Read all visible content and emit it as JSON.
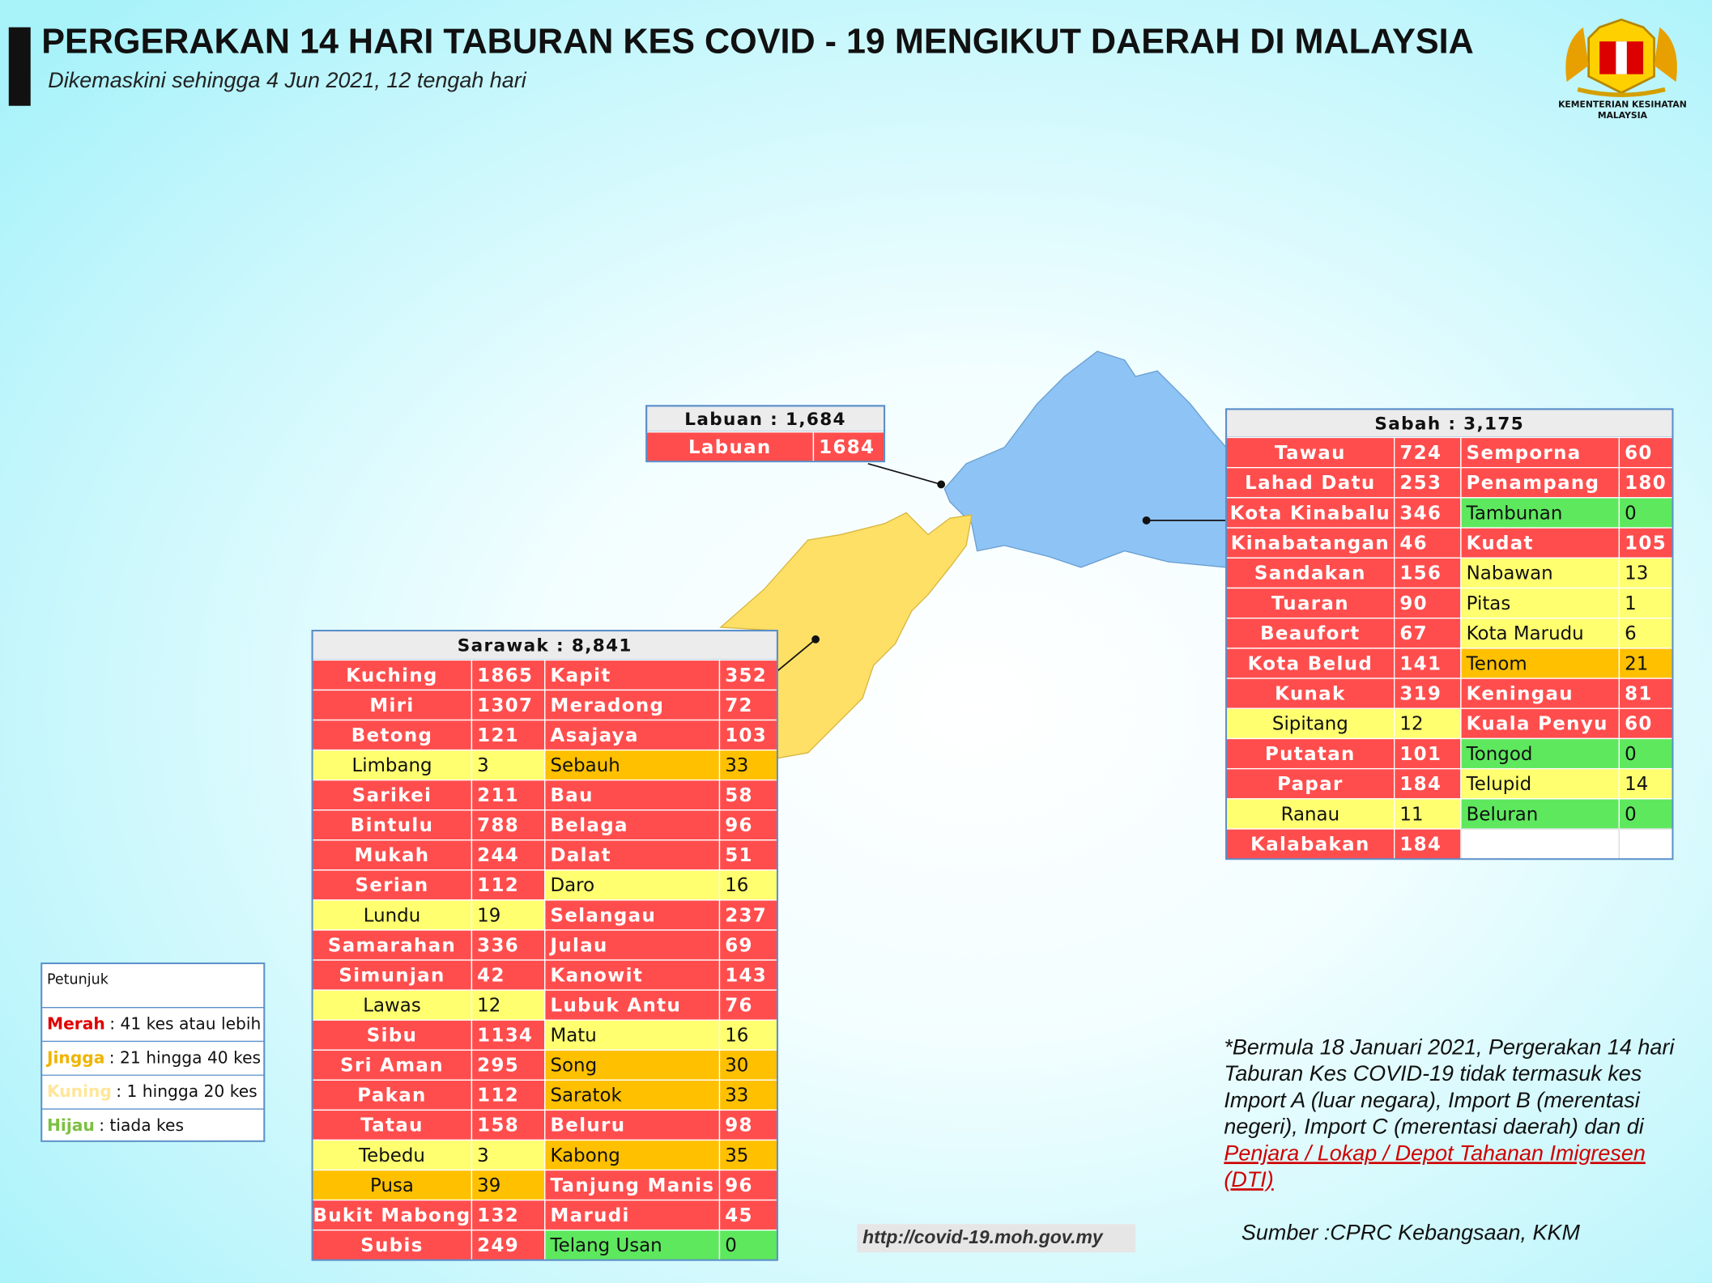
{
  "header": {
    "title": "PERGERAKAN 14 HARI TABURAN KES COVID - 19 MENGIKUT DAERAH DI MALAYSIA",
    "subtitle": "Dikemaskini sehingga 4 Jun 2021, 12 tengah hari"
  },
  "logo": {
    "line1": "KEMENTERIAN KESIHATAN",
    "line2": "MALAYSIA"
  },
  "labuan": {
    "title": "Labuan : 1,684",
    "rows": [
      {
        "left": {
          "name": "Labuan",
          "cases": 1684,
          "color": "#ff4d4d"
        }
      }
    ]
  },
  "sabah": {
    "title": "Sabah : 3,175",
    "rows": [
      {
        "left": {
          "name": "Tawau",
          "cases": 724,
          "color": "#ff4d4d"
        },
        "right": {
          "name": "Semporna",
          "cases": 60,
          "color": "#ff4d4d"
        }
      },
      {
        "left": {
          "name": "Lahad Datu",
          "cases": 253,
          "color": "#ff4d4d"
        },
        "right": {
          "name": "Penampang",
          "cases": 180,
          "color": "#ff4d4d"
        }
      },
      {
        "left": {
          "name": "Kota Kinabalu",
          "cases": 346,
          "color": "#ff4d4d"
        },
        "right": {
          "name": "Tambunan",
          "cases": 0,
          "color": "#5ee85e"
        }
      },
      {
        "left": {
          "name": "Kinabatangan",
          "cases": 46,
          "color": "#ff4d4d"
        },
        "right": {
          "name": "Kudat",
          "cases": 105,
          "color": "#ff4d4d"
        }
      },
      {
        "left": {
          "name": "Sandakan",
          "cases": 156,
          "color": "#ff4d4d"
        },
        "right": {
          "name": "Nabawan",
          "cases": 13,
          "color": "#ffff70"
        }
      },
      {
        "left": {
          "name": "Tuaran",
          "cases": 90,
          "color": "#ff4d4d"
        },
        "right": {
          "name": "Pitas",
          "cases": 1,
          "color": "#ffff70"
        }
      },
      {
        "left": {
          "name": "Beaufort",
          "cases": 67,
          "color": "#ff4d4d"
        },
        "right": {
          "name": "Kota Marudu",
          "cases": 6,
          "color": "#ffff70"
        }
      },
      {
        "left": {
          "name": "Kota Belud",
          "cases": 141,
          "color": "#ff4d4d"
        },
        "right": {
          "name": "Tenom",
          "cases": 21,
          "color": "#ffc000"
        }
      },
      {
        "left": {
          "name": "Kunak",
          "cases": 319,
          "color": "#ff4d4d"
        },
        "right": {
          "name": "Keningau",
          "cases": 81,
          "color": "#ff4d4d"
        }
      },
      {
        "left": {
          "name": "Sipitang",
          "cases": 12,
          "color": "#ffff70"
        },
        "right": {
          "name": "Kuala Penyu",
          "cases": 60,
          "color": "#ff4d4d"
        }
      },
      {
        "left": {
          "name": "Putatan",
          "cases": 101,
          "color": "#ff4d4d"
        },
        "right": {
          "name": "Tongod",
          "cases": 0,
          "color": "#5ee85e"
        }
      },
      {
        "left": {
          "name": "Papar",
          "cases": 184,
          "color": "#ff4d4d"
        },
        "right": {
          "name": "Telupid",
          "cases": 14,
          "color": "#ffff70"
        }
      },
      {
        "left": {
          "name": "Ranau",
          "cases": 11,
          "color": "#ffff70"
        },
        "right": {
          "name": "Beluran",
          "cases": 0,
          "color": "#5ee85e"
        }
      },
      {
        "left": {
          "name": "Kalabakan",
          "cases": 184,
          "color": "#ff4d4d"
        }
      }
    ]
  },
  "sarawak": {
    "title": "Sarawak : 8,841",
    "rows": [
      {
        "left": {
          "name": "Kuching",
          "cases": 1865,
          "color": "#ff4d4d"
        },
        "right": {
          "name": "Kapit",
          "cases": 352,
          "color": "#ff4d4d"
        }
      },
      {
        "left": {
          "name": "Miri",
          "cases": 1307,
          "color": "#ff4d4d"
        },
        "right": {
          "name": "Meradong",
          "cases": 72,
          "color": "#ff4d4d"
        }
      },
      {
        "left": {
          "name": "Betong",
          "cases": 121,
          "color": "#ff4d4d"
        },
        "right": {
          "name": "Asajaya",
          "cases": 103,
          "color": "#ff4d4d"
        }
      },
      {
        "left": {
          "name": "Limbang",
          "cases": 3,
          "color": "#ffff70"
        },
        "right": {
          "name": "Sebauh",
          "cases": 33,
          "color": "#ffc000"
        }
      },
      {
        "left": {
          "name": "Sarikei",
          "cases": 211,
          "color": "#ff4d4d"
        },
        "right": {
          "name": "Bau",
          "cases": 58,
          "color": "#ff4d4d"
        }
      },
      {
        "left": {
          "name": "Bintulu",
          "cases": 788,
          "color": "#ff4d4d"
        },
        "right": {
          "name": "Belaga",
          "cases": 96,
          "color": "#ff4d4d"
        }
      },
      {
        "left": {
          "name": "Mukah",
          "cases": 244,
          "color": "#ff4d4d"
        },
        "right": {
          "name": "Dalat",
          "cases": 51,
          "color": "#ff4d4d"
        }
      },
      {
        "left": {
          "name": "Serian",
          "cases": 112,
          "color": "#ff4d4d"
        },
        "right": {
          "name": "Daro",
          "cases": 16,
          "color": "#ffff70"
        }
      },
      {
        "left": {
          "name": "Lundu",
          "cases": 19,
          "color": "#ffff70"
        },
        "right": {
          "name": "Selangau",
          "cases": 237,
          "color": "#ff4d4d"
        }
      },
      {
        "left": {
          "name": "Samarahan",
          "cases": 336,
          "color": "#ff4d4d"
        },
        "right": {
          "name": "Julau",
          "cases": 69,
          "color": "#ff4d4d"
        }
      },
      {
        "left": {
          "name": "Simunjan",
          "cases": 42,
          "color": "#ff4d4d"
        },
        "right": {
          "name": "Kanowit",
          "cases": 143,
          "color": "#ff4d4d"
        }
      },
      {
        "left": {
          "name": "Lawas",
          "cases": 12,
          "color": "#ffff70"
        },
        "right": {
          "name": "Lubuk Antu",
          "cases": 76,
          "color": "#ff4d4d"
        }
      },
      {
        "left": {
          "name": "Sibu",
          "cases": 1134,
          "color": "#ff4d4d"
        },
        "right": {
          "name": "Matu",
          "cases": 16,
          "color": "#ffff70"
        }
      },
      {
        "left": {
          "name": "Sri Aman",
          "cases": 295,
          "color": "#ff4d4d"
        },
        "right": {
          "name": "Song",
          "cases": 30,
          "color": "#ffc000"
        }
      },
      {
        "left": {
          "name": "Pakan",
          "cases": 112,
          "color": "#ff4d4d"
        },
        "right": {
          "name": "Saratok",
          "cases": 33,
          "color": "#ffc000"
        }
      },
      {
        "left": {
          "name": "Tatau",
          "cases": 158,
          "color": "#ff4d4d"
        },
        "right": {
          "name": "Beluru",
          "cases": 98,
          "color": "#ff4d4d"
        }
      },
      {
        "left": {
          "name": "Tebedu",
          "cases": 3,
          "color": "#ffff70"
        },
        "right": {
          "name": "Kabong",
          "cases": 35,
          "color": "#ffc000"
        }
      },
      {
        "left": {
          "name": "Pusa",
          "cases": 39,
          "color": "#ffc000"
        },
        "right": {
          "name": "Tanjung Manis",
          "cases": 96,
          "color": "#ff4d4d"
        }
      },
      {
        "left": {
          "name": "Bukit Mabong",
          "cases": 132,
          "color": "#ff4d4d"
        },
        "right": {
          "name": "Marudi",
          "cases": 45,
          "color": "#ff4d4d"
        }
      },
      {
        "left": {
          "name": "Subis",
          "cases": 249,
          "color": "#ff4d4d"
        },
        "right": {
          "name": "Telang Usan",
          "cases": 0,
          "color": "#5ee85e"
        }
      }
    ]
  },
  "legend": {
    "title": "Petunjuk",
    "items": [
      {
        "label": "Merah",
        "text": ": 41 kes atau lebih",
        "color": "#ff4d4d",
        "label_color": "#e00000"
      },
      {
        "label": "Jingga",
        "text": ": 21 hingga 40 kes",
        "color": "#ffc000",
        "label_color": "#f0b400"
      },
      {
        "label": "Kuning",
        "text": ": 1 hingga 20 kes",
        "color": "#ffff70",
        "label_color": "#ffe699"
      },
      {
        "label": "Hijau",
        "text": ": tiada kes",
        "color": "#5ee85e",
        "label_color": "#7cc040"
      }
    ]
  },
  "note": {
    "lines": [
      "*Bermula 18 Januari 2021, Pergerakan 14 hari",
      "Taburan Kes COVID-19 tidak termasuk kes",
      "Import A (luar negara), Import B (merentasi",
      "negeri), Import C (merentasi daerah) dan di"
    ],
    "link_lines": [
      "Penjara / Lokap / Depot Tahanan Imigresen",
      "(DTI)"
    ]
  },
  "source": "Sumber :CPRC Kebangsaan,  KKM",
  "url": "http://covid-19.moh.gov.my"
}
